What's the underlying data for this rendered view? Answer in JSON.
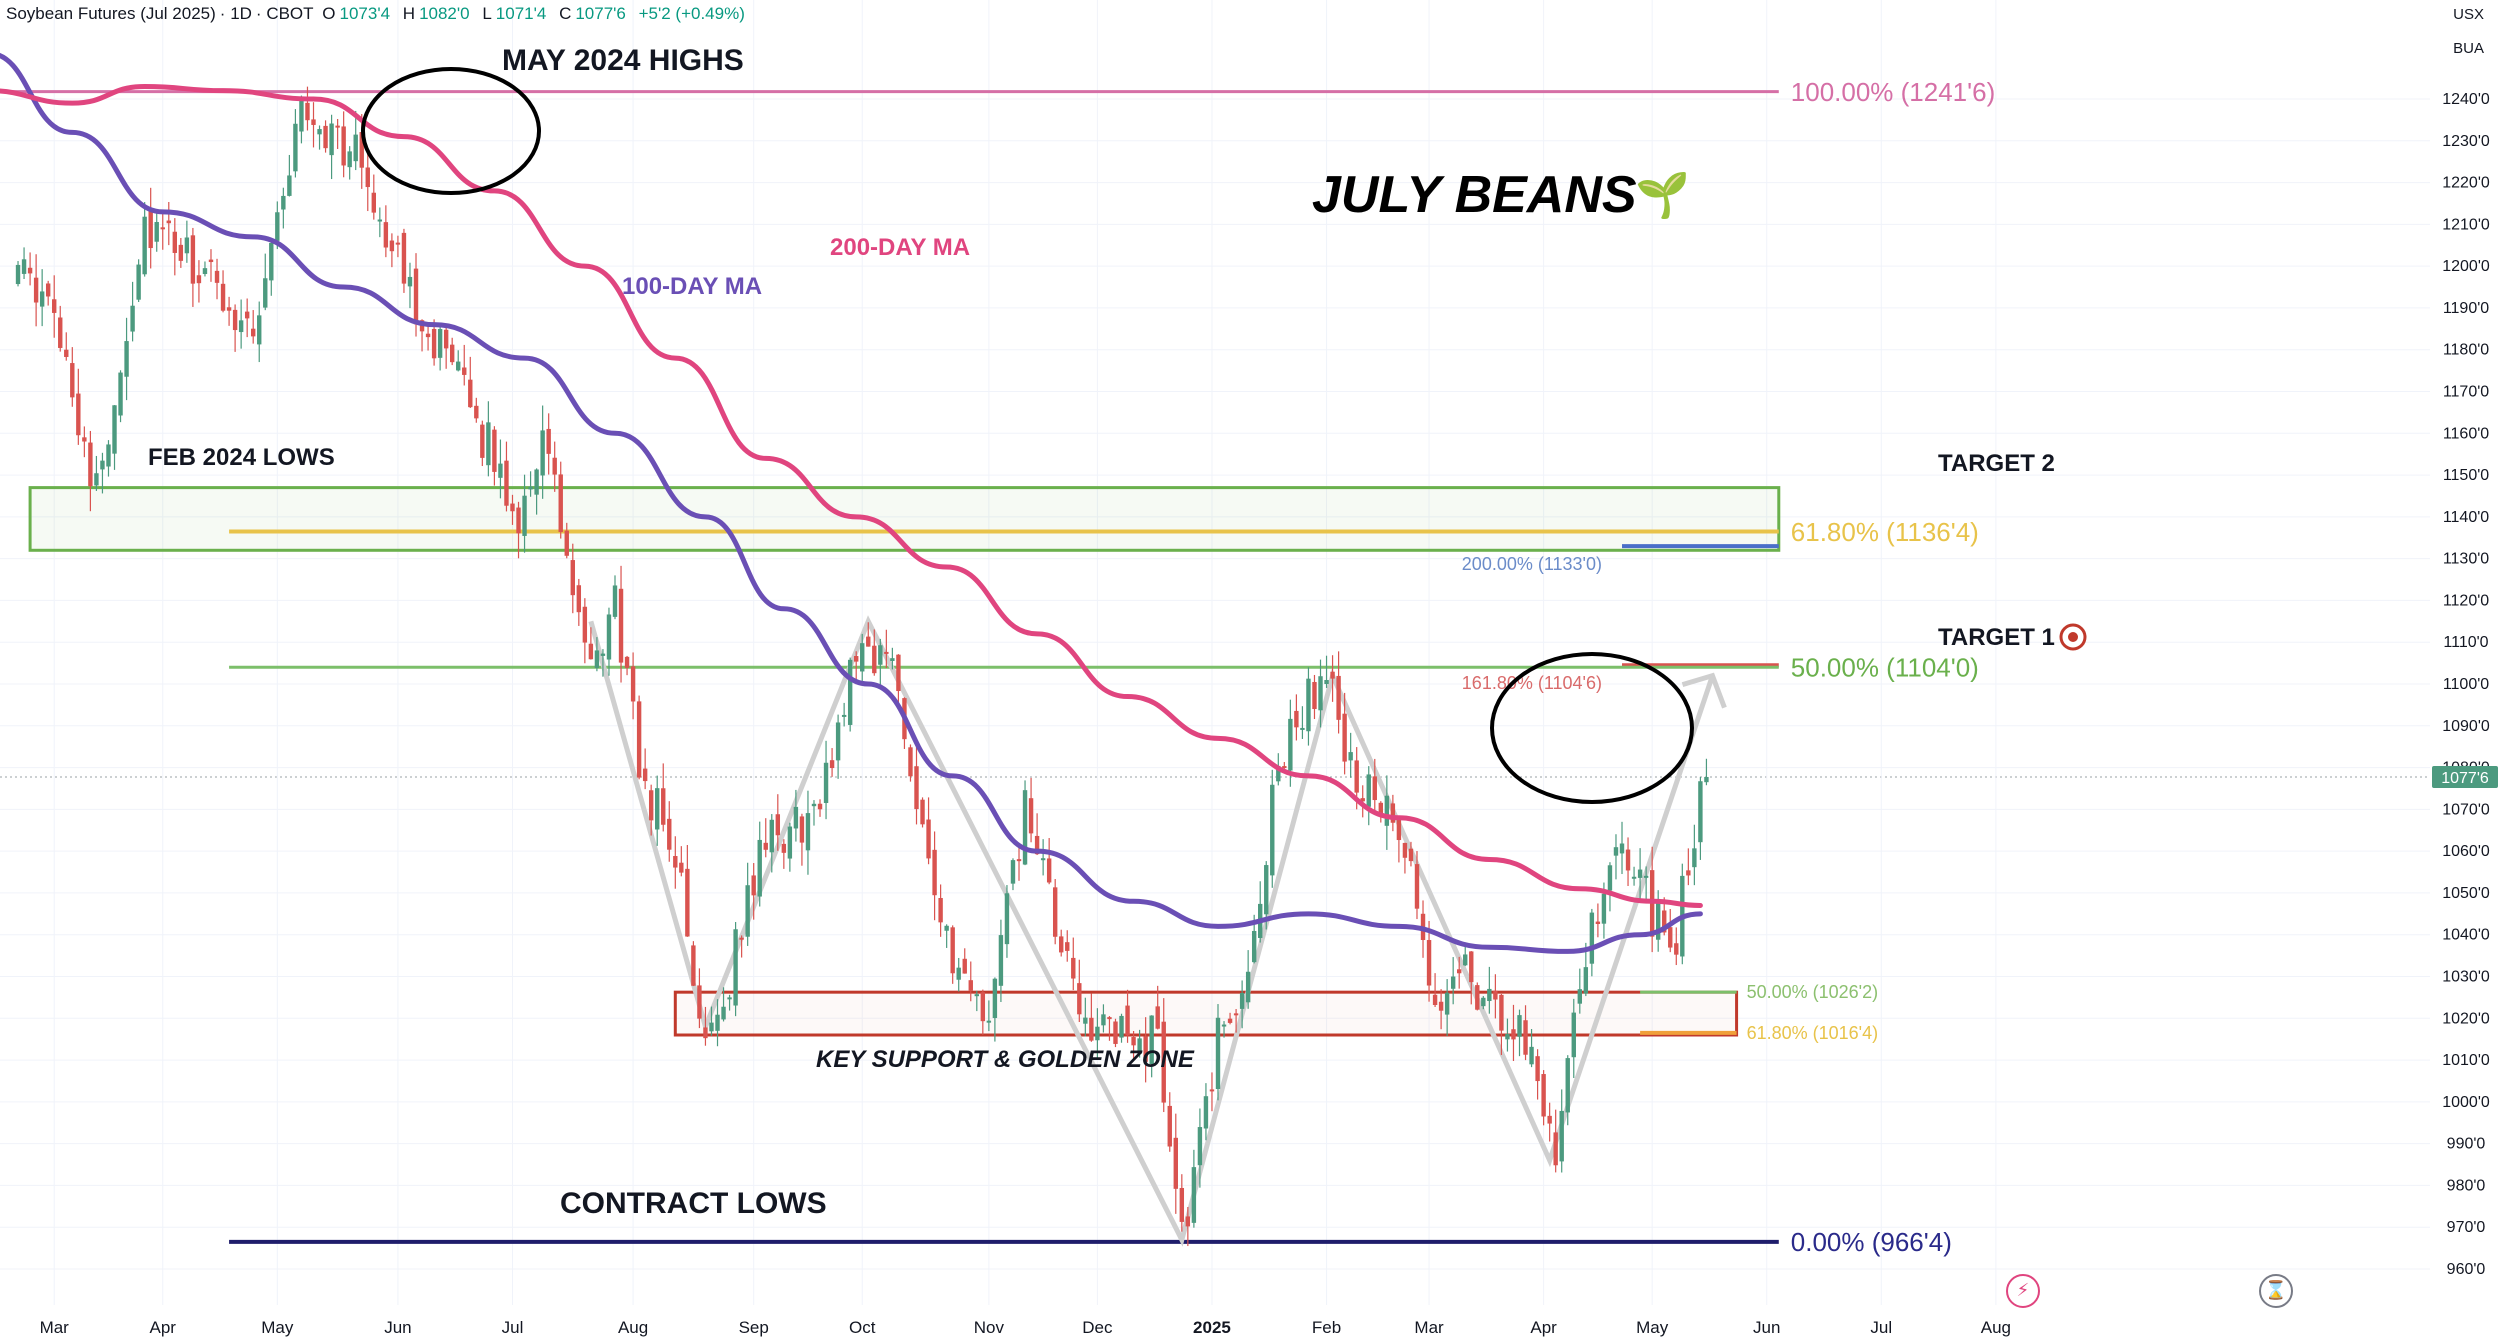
{
  "header": {
    "symbol": "Soybean Futures (Jul 2025)",
    "interval": "1D",
    "exchange": "CBOT",
    "open_label": "O",
    "open": "1073'4",
    "high_label": "H",
    "high": "1082'0",
    "low_label": "L",
    "low": "1071'4",
    "close_label": "C",
    "close": "1077'6",
    "change": "+5'2 (+0.49%)"
  },
  "corner": {
    "currency": "USX",
    "unit": "BUA"
  },
  "colors": {
    "up": "#4c9a7f",
    "down": "#d9534f",
    "ma100": "#6a4fb5",
    "ma200": "#e0457f",
    "green_zone": "#6ab04c",
    "gold": "#e8c34a",
    "red_zone": "#c0392b",
    "blue": "#4a6fc9",
    "navy": "#1f1d6b",
    "grey_path": "#cfcfcf"
  },
  "toolbar_icons": {
    "alert": "lightning-icon",
    "replay": "hourglass-icon"
  },
  "chart_data": {
    "type": "candlestick",
    "title": "JULY BEANS",
    "title_icon": "🌱",
    "y_axis": {
      "min": 955,
      "max": 1250,
      "step": 10,
      "tick_labels": [
        "960'0",
        "970'0",
        "980'0",
        "990'0",
        "1000'0",
        "1010'0",
        "1020'0",
        "1030'0",
        "1040'0",
        "1050'0",
        "1060'0",
        "1070'0",
        "1080'0",
        "1090'0",
        "1100'0",
        "1110'0",
        "1120'0",
        "1130'0",
        "1140'0",
        "1150'0",
        "1160'0",
        "1170'0",
        "1180'0",
        "1190'0",
        "1200'0",
        "1210'0",
        "1220'0",
        "1230'0",
        "1240'0"
      ],
      "last_price": 1077.75,
      "last_price_label": "1077'6"
    },
    "x_axis": {
      "ticks": [
        {
          "label": "Mar",
          "index": 7
        },
        {
          "label": "Apr",
          "index": 25
        },
        {
          "label": "May",
          "index": 44
        },
        {
          "label": "Jun",
          "index": 64
        },
        {
          "label": "Jul",
          "index": 83
        },
        {
          "label": "Aug",
          "index": 103
        },
        {
          "label": "Sep",
          "index": 123
        },
        {
          "label": "Oct",
          "index": 141
        },
        {
          "label": "Nov",
          "index": 162
        },
        {
          "label": "Dec",
          "index": 180
        },
        {
          "label": "2025",
          "index": 199,
          "bold": true
        },
        {
          "label": "Feb",
          "index": 218
        },
        {
          "label": "Mar",
          "index": 235
        },
        {
          "label": "Apr",
          "index": 254
        },
        {
          "label": "May",
          "index": 272
        },
        {
          "label": "Jun",
          "index": 291
        },
        {
          "label": "Jul",
          "index": 310
        },
        {
          "label": "Aug",
          "index": 329
        }
      ]
    },
    "anchors": [
      {
        "index": 0,
        "price": 1200
      },
      {
        "index": 8,
        "price": 1185
      },
      {
        "index": 14,
        "price": 1145
      },
      {
        "index": 22,
        "price": 1210
      },
      {
        "index": 30,
        "price": 1200
      },
      {
        "index": 40,
        "price": 1185
      },
      {
        "index": 48,
        "price": 1238
      },
      {
        "index": 58,
        "price": 1225
      },
      {
        "index": 64,
        "price": 1200
      },
      {
        "index": 78,
        "price": 1160
      },
      {
        "index": 84,
        "price": 1140
      },
      {
        "index": 88,
        "price": 1160
      },
      {
        "index": 92,
        "price": 1130
      },
      {
        "index": 96,
        "price": 1100
      },
      {
        "index": 100,
        "price": 1120
      },
      {
        "index": 104,
        "price": 1080
      },
      {
        "index": 110,
        "price": 1060
      },
      {
        "index": 114,
        "price": 1018
      },
      {
        "index": 118,
        "price": 1025
      },
      {
        "index": 124,
        "price": 1060
      },
      {
        "index": 134,
        "price": 1070
      },
      {
        "index": 140,
        "price": 1110
      },
      {
        "index": 146,
        "price": 1105
      },
      {
        "index": 152,
        "price": 1060
      },
      {
        "index": 156,
        "price": 1030
      },
      {
        "index": 162,
        "price": 1020
      },
      {
        "index": 168,
        "price": 1070
      },
      {
        "index": 176,
        "price": 1025
      },
      {
        "index": 182,
        "price": 1015
      },
      {
        "index": 190,
        "price": 1015
      },
      {
        "index": 194,
        "price": 970
      },
      {
        "index": 196,
        "price": 980
      },
      {
        "index": 200,
        "price": 1015
      },
      {
        "index": 206,
        "price": 1035
      },
      {
        "index": 209,
        "price": 1075
      },
      {
        "index": 214,
        "price": 1095
      },
      {
        "index": 218,
        "price": 1102
      },
      {
        "index": 222,
        "price": 1080
      },
      {
        "index": 227,
        "price": 1070
      },
      {
        "index": 231,
        "price": 1060
      },
      {
        "index": 236,
        "price": 1020
      },
      {
        "index": 240,
        "price": 1035
      },
      {
        "index": 246,
        "price": 1020
      },
      {
        "index": 252,
        "price": 1015
      },
      {
        "index": 256,
        "price": 988
      },
      {
        "index": 259,
        "price": 1025
      },
      {
        "index": 264,
        "price": 1050
      },
      {
        "index": 268,
        "price": 1060
      },
      {
        "index": 272,
        "price": 1045
      },
      {
        "index": 276,
        "price": 1040
      },
      {
        "index": 278,
        "price": 1060
      },
      {
        "index": 281,
        "price": 1077.75
      }
    ],
    "moving_averages": [
      {
        "name": "100-DAY MA",
        "points": [
          {
            "index": -4,
            "price": 1251
          },
          {
            "index": 10,
            "price": 1232
          },
          {
            "index": 25,
            "price": 1213
          },
          {
            "index": 40,
            "price": 1207
          },
          {
            "index": 55,
            "price": 1195
          },
          {
            "index": 70,
            "price": 1186
          },
          {
            "index": 85,
            "price": 1178
          },
          {
            "index": 100,
            "price": 1160
          },
          {
            "index": 115,
            "price": 1140
          },
          {
            "index": 128,
            "price": 1118
          },
          {
            "index": 142,
            "price": 1100
          },
          {
            "index": 156,
            "price": 1078
          },
          {
            "index": 170,
            "price": 1060
          },
          {
            "index": 186,
            "price": 1048
          },
          {
            "index": 200,
            "price": 1042
          },
          {
            "index": 215,
            "price": 1045
          },
          {
            "index": 230,
            "price": 1042
          },
          {
            "index": 245,
            "price": 1037
          },
          {
            "index": 258,
            "price": 1036
          },
          {
            "index": 270,
            "price": 1040
          },
          {
            "index": 280,
            "price": 1045
          }
        ]
      },
      {
        "name": "200-DAY MA",
        "points": [
          {
            "index": -4,
            "price": 1242
          },
          {
            "index": 10,
            "price": 1239
          },
          {
            "index": 22,
            "price": 1243
          },
          {
            "index": 35,
            "price": 1242
          },
          {
            "index": 50,
            "price": 1240
          },
          {
            "index": 65,
            "price": 1231
          },
          {
            "index": 80,
            "price": 1218
          },
          {
            "index": 95,
            "price": 1200
          },
          {
            "index": 110,
            "price": 1178
          },
          {
            "index": 125,
            "price": 1154
          },
          {
            "index": 140,
            "price": 1140
          },
          {
            "index": 155,
            "price": 1128
          },
          {
            "index": 170,
            "price": 1112
          },
          {
            "index": 185,
            "price": 1097
          },
          {
            "index": 200,
            "price": 1087
          },
          {
            "index": 215,
            "price": 1078
          },
          {
            "index": 230,
            "price": 1068
          },
          {
            "index": 245,
            "price": 1058
          },
          {
            "index": 260,
            "price": 1051
          },
          {
            "index": 272,
            "price": 1048
          },
          {
            "index": 280,
            "price": 1047
          }
        ]
      }
    ],
    "price_levels": [
      {
        "price": 1241.75,
        "label": "100.00% (1241'6)",
        "from_index": -5,
        "to_index": 293
      },
      {
        "price": 1136.5,
        "label": "61.80% (1136'4)",
        "from_index": 36,
        "to_index": 293
      },
      {
        "price": 1133,
        "label": "200.00% (1133'0)",
        "from_index": 267,
        "to_index": 293
      },
      {
        "price": 1104.5,
        "label": "161.80% (1104'6)",
        "from_index": 267,
        "to_index": 293
      },
      {
        "price": 1104,
        "label": "50.00% (1104'0)",
        "from_index": 36,
        "to_index": 293
      },
      {
        "price": 1026.25,
        "label": "50.00% (1026'2)",
        "from_index": 270,
        "to_index": 286
      },
      {
        "price": 1016.5,
        "label": "61.80% (1016'4)",
        "from_index": 270,
        "to_index": 286
      },
      {
        "price": 966.5,
        "label": "0.00% (966'4)",
        "from_index": 36,
        "to_index": 293
      }
    ],
    "zones": [
      {
        "name": "target-2-zone",
        "from_index": 3,
        "to_index": 293,
        "high": 1147,
        "low": 1132
      },
      {
        "name": "key-support-zone",
        "from_index": 110,
        "to_index": 286,
        "high": 1026.25,
        "low": 1016
      }
    ],
    "paths": {
      "grey_zigzag": [
        {
          "index": 96,
          "price": 1115
        },
        {
          "index": 115,
          "price": 1018
        },
        {
          "index": 142,
          "price": 1115
        },
        {
          "index": 194,
          "price": 967
        },
        {
          "index": 219,
          "price": 1102
        },
        {
          "index": 255,
          "price": 986
        },
        {
          "index": 282,
          "price": 1102
        }
      ]
    },
    "annotations": {
      "may_highs": "MAY 2024 HIGHS",
      "feb_lows": "FEB 2024 LOWS",
      "ma200": "200-DAY MA",
      "ma100": "100-DAY MA",
      "target2": "TARGET 2",
      "target1": "TARGET 1",
      "key_support": "KEY SUPPORT & GOLDEN ZONE",
      "contract_lows": "CONTRACT LOWS"
    }
  }
}
